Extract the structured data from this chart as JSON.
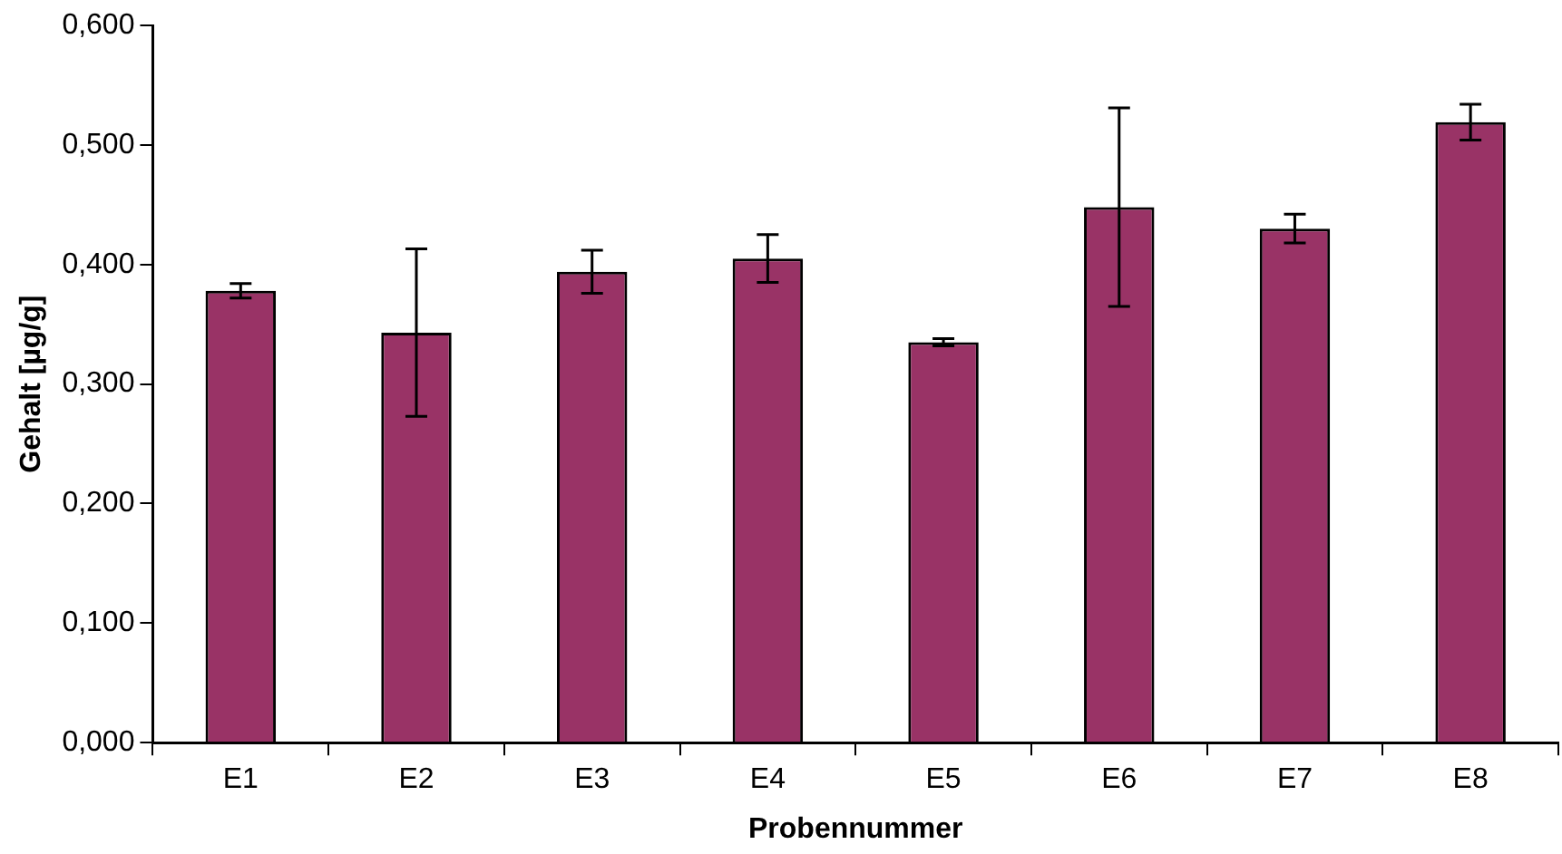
{
  "chart_data": {
    "type": "bar",
    "xlabel": "Probennummer",
    "ylabel": "Gehalt [µg/g]",
    "categories": [
      "E1",
      "E2",
      "E3",
      "E4",
      "E5",
      "E6",
      "E7",
      "E8"
    ],
    "series": [
      {
        "color": "#993366",
        "values": [
          0.378,
          0.343,
          0.394,
          0.405,
          0.335,
          0.448,
          0.43,
          0.519
        ],
        "errors": [
          0.006,
          0.07,
          0.018,
          0.02,
          0.003,
          0.083,
          0.012,
          0.015
        ]
      }
    ],
    "ylim": [
      0,
      0.6
    ],
    "yticks": [
      {
        "value": 0,
        "label": "0,000"
      },
      {
        "value": 0.1,
        "label": "0,100"
      },
      {
        "value": 0.2,
        "label": "0,200"
      },
      {
        "value": 0.3,
        "label": "0,300"
      },
      {
        "value": 0.4,
        "label": "0,400"
      },
      {
        "value": 0.5,
        "label": "0,500"
      },
      {
        "value": 0.6,
        "label": "0,600"
      }
    ],
    "grid": false,
    "legend": false
  }
}
